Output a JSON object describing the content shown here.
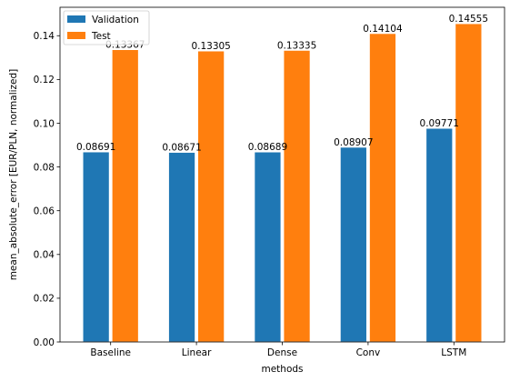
{
  "chart_data": {
    "type": "bar",
    "categories": [
      "Baseline",
      "Linear",
      "Dense",
      "Conv",
      "LSTM"
    ],
    "series": [
      {
        "name": "Validation",
        "values": [
          0.08691,
          0.08671,
          0.08689,
          0.08907,
          0.09771
        ],
        "value_labels": [
          "0.08691",
          "0.08671",
          "0.08689",
          "0.08907",
          "0.09771"
        ],
        "color": "#1f77b4"
      },
      {
        "name": "Test",
        "values": [
          0.13367,
          0.13305,
          0.13335,
          0.14104,
          0.14555
        ],
        "value_labels": [
          "0.13367",
          "0.13305",
          "0.13335",
          "0.14104",
          "0.14555"
        ],
        "color": "#ff7f0e"
      }
    ],
    "xlabel": "methods",
    "ylabel": "mean_absolute_error [EUR/PLN, normalized]",
    "ylim": [
      0,
      0.153
    ],
    "yticks": [
      0.0,
      0.02,
      0.04,
      0.06,
      0.08,
      0.1,
      0.12,
      0.14
    ],
    "ytick_labels": [
      "0.00",
      "0.02",
      "0.04",
      "0.06",
      "0.08",
      "0.10",
      "0.12",
      "0.14"
    ],
    "grid": false,
    "legend_position": "top-left"
  }
}
